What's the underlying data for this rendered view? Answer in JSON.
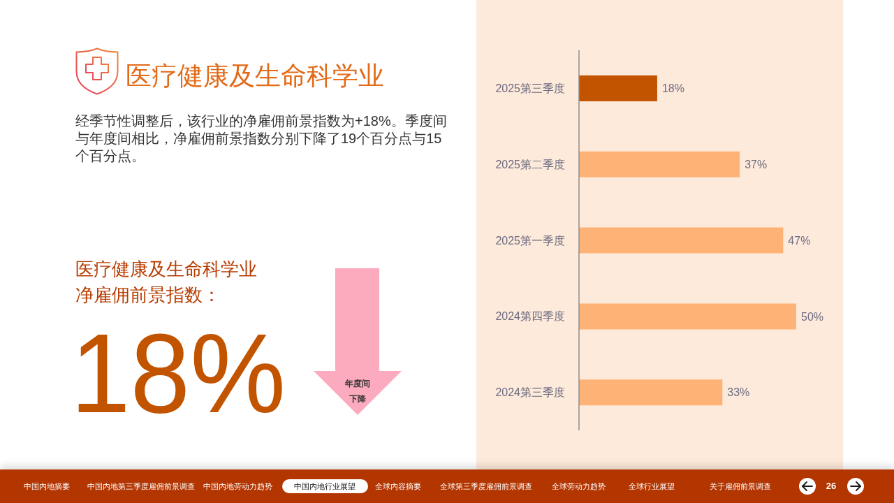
{
  "chart_data": {
    "type": "bar",
    "orientation": "horizontal",
    "title": "医疗健康及生命科学业",
    "subtitle": "经季节性调整后，该行业的净雇佣前景指数为+18%。季度间与年度间相比，净雇佣前景指数分别下降了19个百分点与15个百分点。",
    "categories": [
      "2025第三季度",
      "2025第二季度",
      "2025第一季度",
      "2024第四季度",
      "2024第三季度"
    ],
    "values": [
      18,
      37,
      47,
      50,
      33
    ],
    "colors": [
      "#c25400",
      "#feb275",
      "#feb275",
      "#feb275",
      "#feb275"
    ],
    "value_labels": [
      "18%",
      "37%",
      "47%",
      "50%",
      "33%"
    ],
    "tick_labels": "y",
    "annotations": [
      "医疗健康及生命科学业",
      "净雇佣前景指数：",
      "18%",
      "年度间",
      "下降",
      "中国内地摘要",
      "中国内地第三季度雇佣前景调查",
      "中国内地劳动力趋势",
      "中国内地行业展望",
      "全球内容摘要",
      "全球第三季度雇佣前景调查",
      "全球劳动力趋势",
      "全球行业展望",
      "关于雇佣前景调查",
      "26"
    ]
  }
}
